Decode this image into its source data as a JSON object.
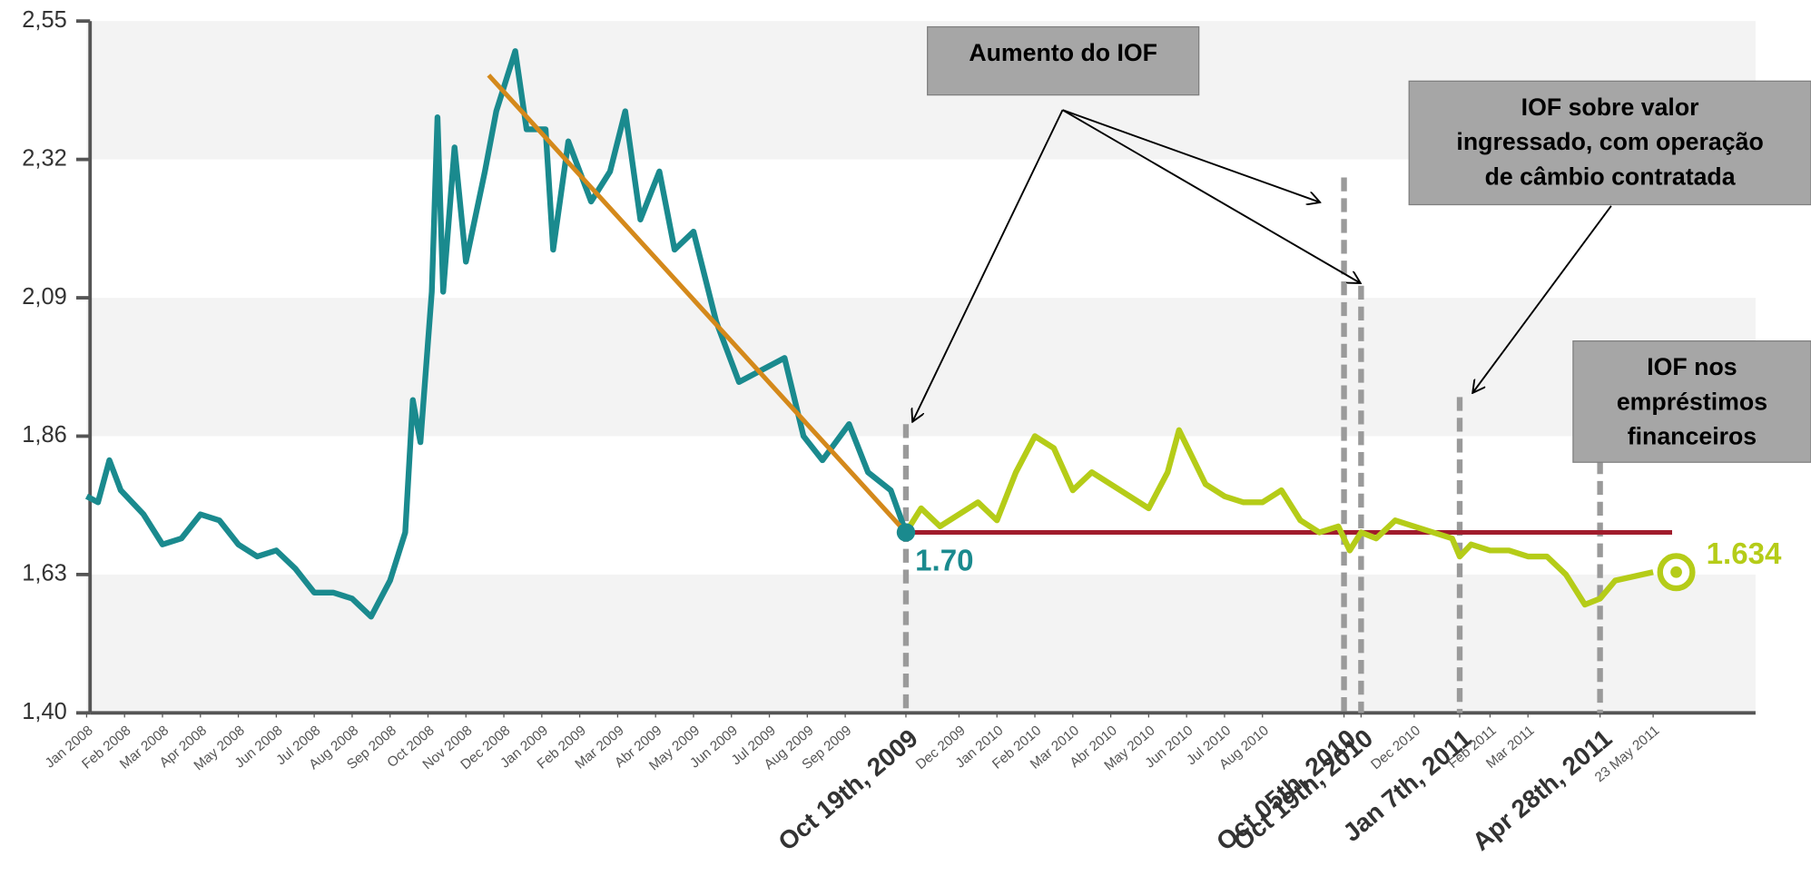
{
  "chart_data": {
    "type": "line",
    "xlim": [
      0,
      44
    ],
    "ylim": [
      1.4,
      2.55
    ],
    "yticks": [
      {
        "value": 1.4,
        "label": "1,40"
      },
      {
        "value": 1.63,
        "label": "1,63"
      },
      {
        "value": 1.86,
        "label": "1,86"
      },
      {
        "value": 2.09,
        "label": "2,09"
      },
      {
        "value": 2.32,
        "label": "2,32"
      },
      {
        "value": 2.55,
        "label": "2,55"
      }
    ],
    "xticks": [
      {
        "value": 0,
        "label": "Jan 2008"
      },
      {
        "value": 1,
        "label": "Feb 2008"
      },
      {
        "value": 2,
        "label": "Mar 2008"
      },
      {
        "value": 3,
        "label": "Apr 2008"
      },
      {
        "value": 4,
        "label": "May 2008"
      },
      {
        "value": 5,
        "label": "Jun 2008"
      },
      {
        "value": 6,
        "label": "Jul 2008"
      },
      {
        "value": 7,
        "label": "Aug 2008"
      },
      {
        "value": 8,
        "label": "Sep 2008"
      },
      {
        "value": 9,
        "label": "Oct 2008"
      },
      {
        "value": 10,
        "label": "Nov 2008"
      },
      {
        "value": 11,
        "label": "Dec 2008"
      },
      {
        "value": 12,
        "label": "Jan 2009"
      },
      {
        "value": 13,
        "label": "Feb 2009"
      },
      {
        "value": 14,
        "label": "Mar 2009"
      },
      {
        "value": 15,
        "label": "Abr 2009"
      },
      {
        "value": 16,
        "label": "May 2009"
      },
      {
        "value": 17,
        "label": "Jun 2009"
      },
      {
        "value": 18,
        "label": "Jul 2009"
      },
      {
        "value": 19,
        "label": "Aug 2009"
      },
      {
        "value": 20,
        "label": "Sep 2009"
      },
      {
        "value": 21.6,
        "label": "Oct 19th, 2009"
      },
      {
        "value": 23,
        "label": "Dec 2009"
      },
      {
        "value": 24,
        "label": "Jan 2010"
      },
      {
        "value": 25,
        "label": "Feb 2010"
      },
      {
        "value": 26,
        "label": "Mar 2010"
      },
      {
        "value": 27,
        "label": "Abr 2010"
      },
      {
        "value": 28,
        "label": "May 2010"
      },
      {
        "value": 29,
        "label": "Jun 2010"
      },
      {
        "value": 30,
        "label": "Jul 2010"
      },
      {
        "value": 31,
        "label": "Aug 2010"
      },
      {
        "value": 33.15,
        "label": "Oct 05th, 2010"
      },
      {
        "value": 33.6,
        "label": "Oct 19th, 2010"
      },
      {
        "value": 35,
        "label": "Dec 2010"
      },
      {
        "value": 36.2,
        "label": "Jan 7th, 2011"
      },
      {
        "value": 37,
        "label": "Feb 2011"
      },
      {
        "value": 38,
        "label": "Mar 2011"
      },
      {
        "value": 39.9,
        "label": "Apr 28th, 2011"
      },
      {
        "value": 41.3,
        "label": "23 May 2011"
      }
    ],
    "series": [
      {
        "color": "#1a8a8e",
        "x": [
          0,
          0.3,
          0.6,
          0.9,
          1.2,
          1.5,
          2,
          2.5,
          3,
          3.5,
          4,
          4.5,
          5,
          5.5,
          6,
          6.5,
          7,
          7.5,
          8,
          8.4,
          8.6,
          8.8,
          9.1,
          9.25,
          9.4,
          9.7,
          10,
          10.5,
          10.8,
          11.3,
          11.6,
          12.1,
          12.3,
          12.7,
          13.3,
          13.8,
          14.2,
          14.6,
          15.1,
          15.5,
          16,
          16.6,
          17.2,
          17.8,
          18.4,
          18.9,
          19.4,
          20.1,
          20.6,
          21.2,
          21.6
        ],
        "values": [
          1.76,
          1.75,
          1.82,
          1.77,
          1.75,
          1.73,
          1.68,
          1.69,
          1.73,
          1.72,
          1.68,
          1.66,
          1.67,
          1.64,
          1.6,
          1.6,
          1.59,
          1.56,
          1.62,
          1.7,
          1.92,
          1.85,
          2.1,
          2.39,
          2.1,
          2.34,
          2.15,
          2.3,
          2.4,
          2.5,
          2.37,
          2.37,
          2.17,
          2.35,
          2.25,
          2.3,
          2.4,
          2.22,
          2.3,
          2.17,
          2.2,
          2.05,
          1.95,
          1.97,
          1.99,
          1.86,
          1.82,
          1.88,
          1.8,
          1.77,
          1.7
        ],
        "value_labels": [
          null,
          null,
          null,
          null,
          null,
          null,
          null,
          null,
          null,
          null,
          null,
          null,
          null,
          null,
          null,
          null,
          null,
          null,
          null,
          null,
          null,
          null,
          null,
          null,
          null,
          null,
          null,
          null,
          null,
          null,
          null,
          null,
          null,
          null,
          null,
          null,
          null,
          null,
          null,
          null,
          null,
          null,
          null,
          null,
          null,
          null,
          null,
          null,
          null,
          null,
          "1.70"
        ]
      },
      {
        "color": "#b5cc18",
        "x": [
          21.6,
          22,
          22.5,
          23,
          23.5,
          24,
          24.5,
          25,
          25.5,
          26,
          26.5,
          27,
          27.5,
          28,
          28.5,
          28.8,
          29.5,
          30,
          30.5,
          31,
          31.5,
          32,
          32.5,
          33,
          33.3,
          33.6,
          34,
          34.5,
          35,
          35.5,
          36,
          36.2,
          36.5,
          37,
          37.5,
          38,
          38.5,
          39,
          39.5,
          39.9,
          40.3,
          41.3
        ],
        "values": [
          1.7,
          1.74,
          1.71,
          1.73,
          1.75,
          1.72,
          1.8,
          1.86,
          1.84,
          1.77,
          1.8,
          1.78,
          1.76,
          1.74,
          1.8,
          1.87,
          1.78,
          1.76,
          1.75,
          1.75,
          1.77,
          1.72,
          1.7,
          1.71,
          1.67,
          1.7,
          1.69,
          1.72,
          1.71,
          1.7,
          1.69,
          1.66,
          1.68,
          1.67,
          1.67,
          1.66,
          1.66,
          1.63,
          1.58,
          1.59,
          1.62,
          1.634
        ],
        "value_labels": [
          null,
          null,
          null,
          null,
          null,
          null,
          null,
          null,
          null,
          null,
          null,
          null,
          null,
          null,
          null,
          null,
          null,
          null,
          null,
          null,
          null,
          null,
          null,
          null,
          null,
          null,
          null,
          null,
          null,
          null,
          null,
          null,
          null,
          null,
          null,
          null,
          null,
          null,
          null,
          null,
          null,
          "1.634"
        ]
      }
    ],
    "trend_line": {
      "color": "#d4891b",
      "x": [
        10.6,
        21.6
      ],
      "values": [
        2.46,
        1.7
      ]
    },
    "reference_line": {
      "color": "#a01c2c",
      "x": [
        21.6,
        41.8
      ],
      "values": [
        1.7,
        1.7
      ]
    },
    "event_lines": [
      {
        "x": 21.6,
        "top": 1.88
      },
      {
        "x": 33.15,
        "top": 2.29
      },
      {
        "x": 33.6,
        "top": 2.11
      },
      {
        "x": 36.2,
        "top": 1.925
      },
      {
        "x": 39.9,
        "top": 1.82
      }
    ],
    "annotations": [
      {
        "lines": [
          "Aumento do IOF"
        ]
      },
      {
        "lines": [
          "IOF sobre valor",
          "ingressado, com operação",
          "de câmbio contratada"
        ]
      },
      {
        "lines": [
          "IOF nos",
          "empréstimos",
          "financeiros"
        ]
      }
    ]
  }
}
